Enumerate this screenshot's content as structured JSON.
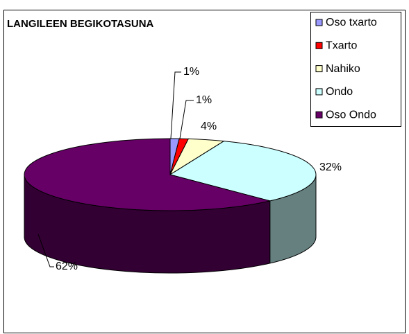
{
  "chart_data": {
    "type": "pie3d",
    "title": "LANGILEEN BEGIKOTASUNA",
    "categories": [
      "Oso txarto",
      "Txarto",
      "Nahiko",
      "Ondo",
      "Oso Ondo"
    ],
    "values": [
      1,
      1,
      4,
      32,
      62
    ],
    "value_labels": [
      "1%",
      "1%",
      "4%",
      "32%",
      "62%"
    ],
    "colors": [
      "#9999FF",
      "#FF0000",
      "#FFFFCC",
      "#CCFFFF",
      "#660066"
    ],
    "legend": "top-right"
  }
}
